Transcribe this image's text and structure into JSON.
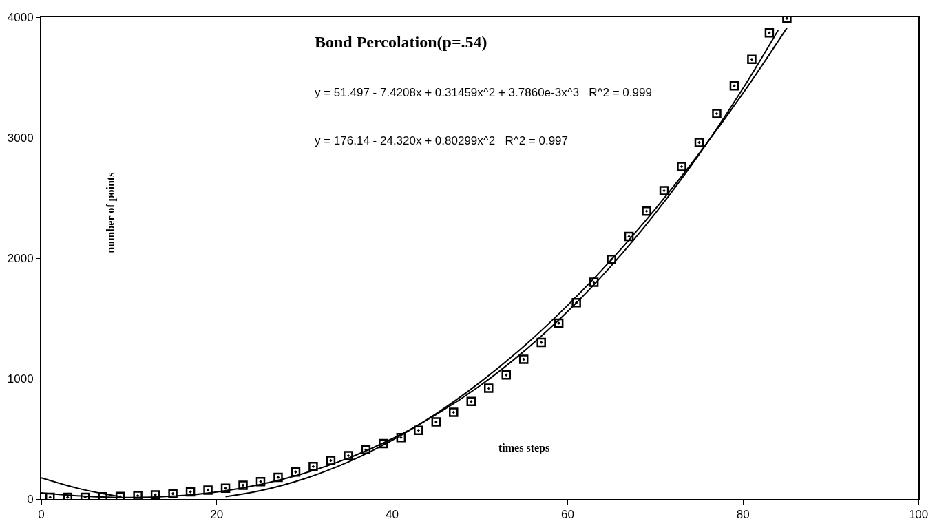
{
  "chart_data": {
    "type": "scatter",
    "title": "Bond Percolation(p=.54)",
    "xlabel": "times steps",
    "ylabel": "number of points",
    "annotations": [
      "y = 51.497 - 7.4208x + 0.31459x^2 + 3.7860e-3x^3   R^2 = 0.999",
      "y = 176.14 - 24.320x + 0.80299x^2   R^2 = 0.997"
    ],
    "x": [
      1,
      3,
      5,
      7,
      9,
      11,
      13,
      15,
      17,
      19,
      21,
      23,
      25,
      27,
      29,
      31,
      33,
      35,
      37,
      39,
      41,
      43,
      45,
      47,
      49,
      51,
      53,
      55,
      57,
      59,
      61,
      63,
      65,
      67,
      69,
      71,
      73,
      75,
      77,
      79,
      81,
      83,
      85
    ],
    "series": [
      {
        "color": "#000000",
        "values": [
          15,
          15,
          15,
          18,
          22,
          28,
          35,
          45,
          60,
          75,
          90,
          115,
          145,
          180,
          225,
          270,
          320,
          360,
          410,
          460,
          510,
          570,
          640,
          720,
          810,
          920,
          1030,
          1160,
          1300,
          1460,
          1630,
          1800,
          1990,
          2180,
          2390,
          2560,
          2760,
          2960,
          3200,
          3430,
          3650,
          3870,
          3990
        ]
      },
      {
        "type": "line",
        "marker": "none",
        "color": "#000000",
        "x": [
          0,
          5,
          10,
          15,
          20,
          25,
          30,
          35,
          40,
          45,
          50,
          55,
          60,
          65,
          70,
          75,
          80,
          84
        ],
        "values": [
          51,
          23,
          13,
          24,
          59,
          122,
          214,
          339,
          500,
          700,
          940,
          1225,
          1557,
          1938,
          2372,
          2862,
          3410,
          3892
        ]
      },
      {
        "type": "line",
        "marker": "none",
        "color": "#000000",
        "x": [
          0,
          4,
          7,
          9,
          10,
          20,
          21,
          25,
          30,
          35,
          40,
          45,
          50,
          55,
          60,
          65,
          70,
          75,
          80,
          85
        ],
        "values": [
          176,
          92,
          45,
          22,
          null,
          null,
          20,
          70,
          169,
          308,
          488,
          708,
          968,
          1267,
          1608,
          1988,
          2408,
          2869,
          3369,
          3911
        ]
      }
    ],
    "xlim": [
      0,
      100
    ],
    "xticks": [
      0,
      20,
      40,
      60,
      80,
      100
    ],
    "ylim": [
      0,
      4000
    ],
    "yticks": [
      0,
      1000,
      2000,
      3000,
      4000
    ],
    "marker": "square",
    "line_style": "solid"
  }
}
